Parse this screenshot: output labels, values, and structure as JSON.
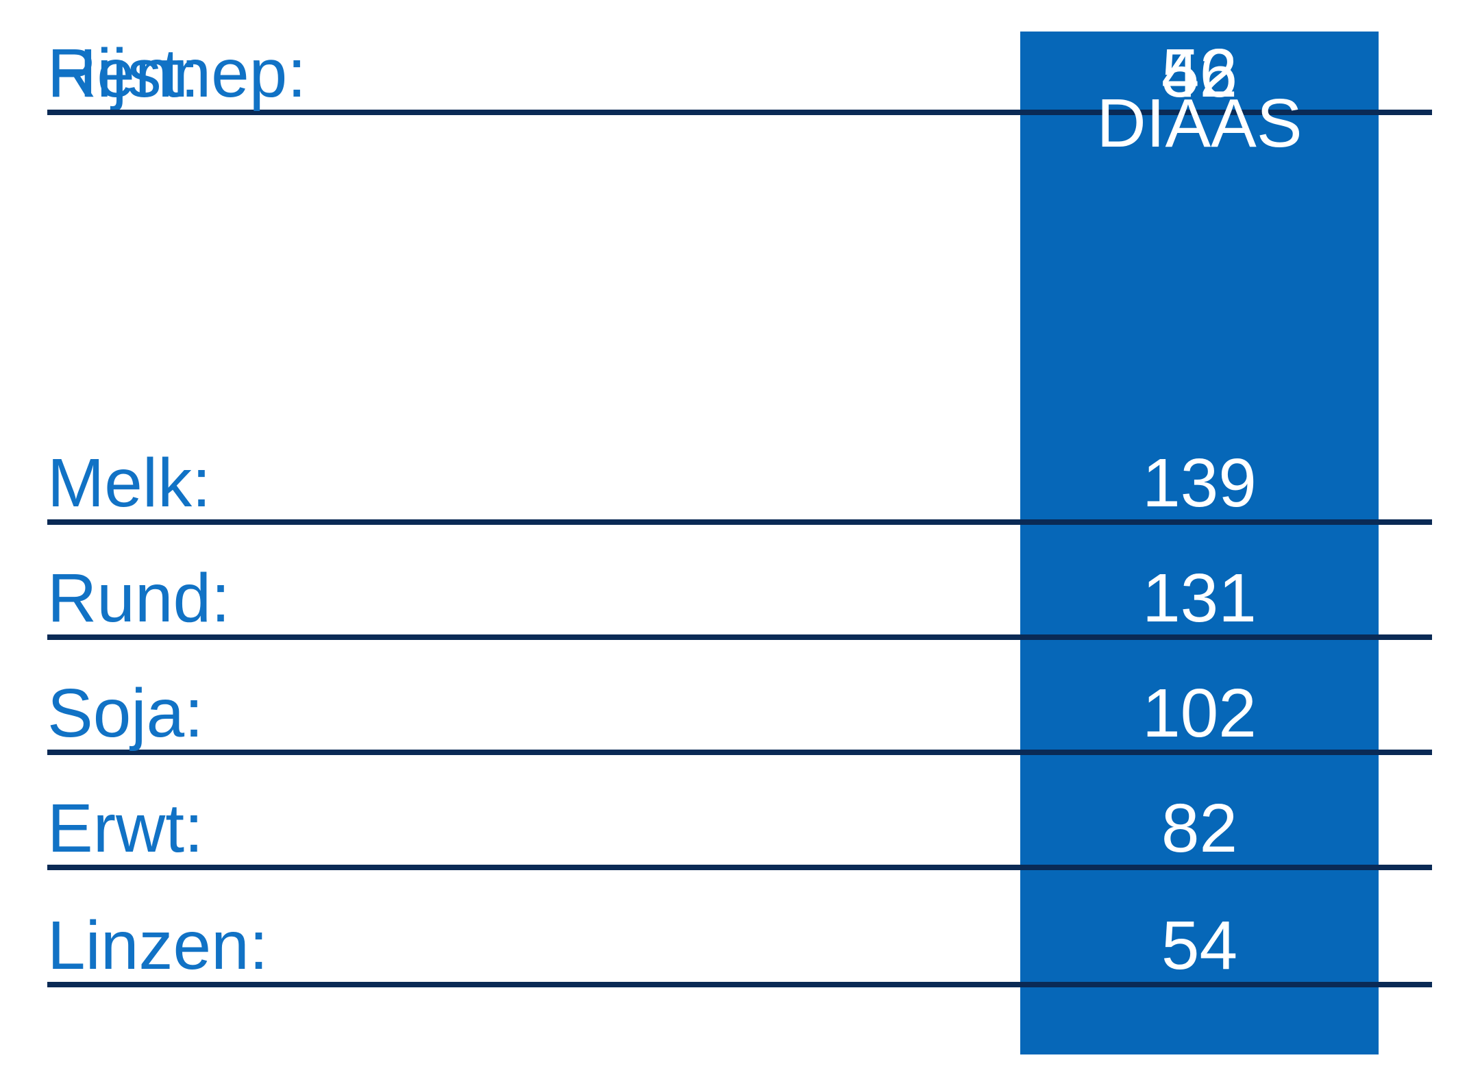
{
  "table": {
    "header": "DIAAS",
    "rows": [
      {
        "label": "Melk:",
        "value": "139"
      },
      {
        "label": "Rund:",
        "value": "131"
      },
      {
        "label": "Soja:",
        "value": "102"
      },
      {
        "label": "Erwt:",
        "value": "82"
      },
      {
        "label": "Linzen:",
        "value": "54"
      },
      {
        "label": "Rijst:",
        "value": "52"
      },
      {
        "label": "Hennep:",
        "value": "46"
      }
    ]
  },
  "colors": {
    "column_blue": "#0667b8",
    "label_blue": "#1172c5",
    "rule_navy": "#0a2a55",
    "value_text": "#ffffff",
    "background": "#ffffff"
  },
  "chart_data": {
    "type": "table",
    "title": "",
    "columns": [
      "",
      "DIAAS"
    ],
    "categories": [
      "Melk",
      "Rund",
      "Soja",
      "Erwt",
      "Linzen",
      "Rijst",
      "Hennep"
    ],
    "values": [
      139,
      131,
      102,
      82,
      54,
      52,
      46
    ],
    "value_column_header": "DIAAS",
    "layout_hints": {
      "grid": "horizontal rules under each row",
      "value_column": "solid blue band, white centered values",
      "labels": "blue text, left aligned"
    }
  }
}
